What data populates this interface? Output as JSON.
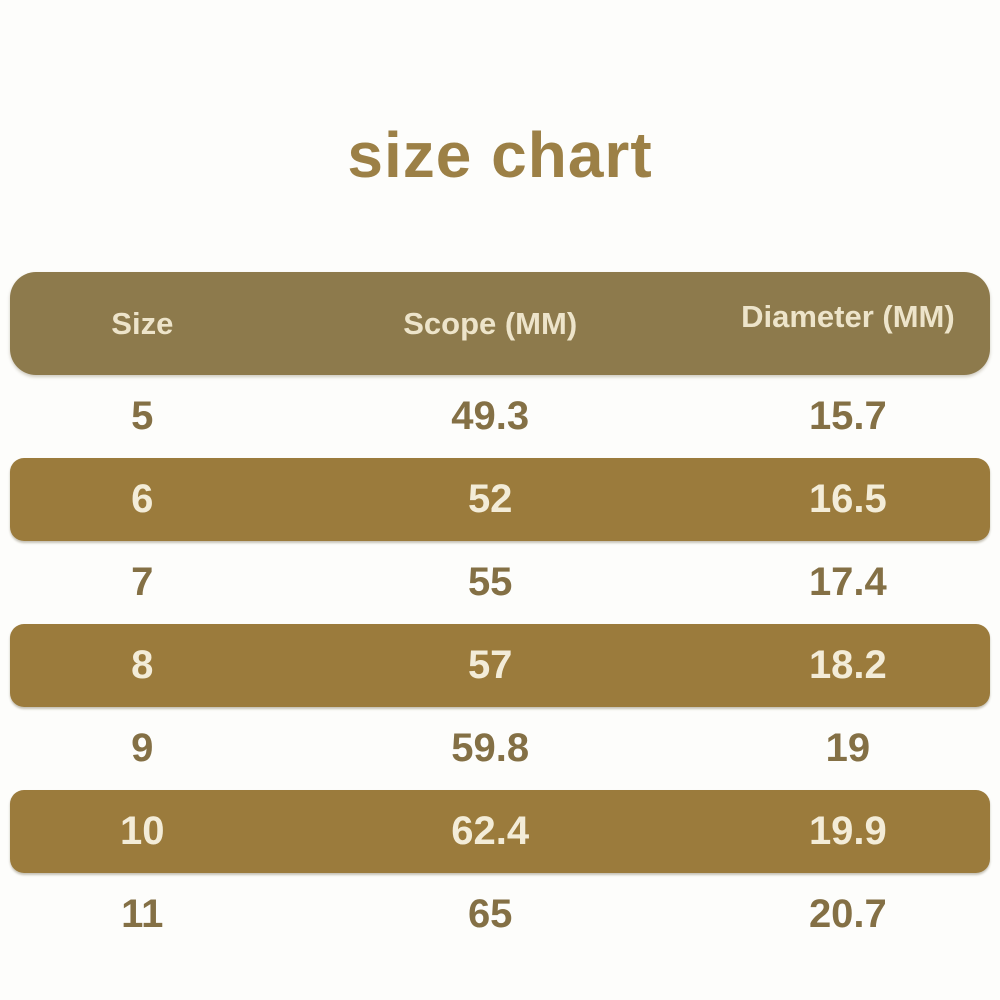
{
  "title": "size chart",
  "table": {
    "columns": [
      "Size",
      "Scope (MM)",
      "Diameter (MM)"
    ],
    "rows": [
      {
        "size": "5",
        "scope": "49.3",
        "diameter": "15.7"
      },
      {
        "size": "6",
        "scope": "52",
        "diameter": "16.5"
      },
      {
        "size": "7",
        "scope": "55",
        "diameter": "17.4"
      },
      {
        "size": "8",
        "scope": "57",
        "diameter": "18.2"
      },
      {
        "size": "9",
        "scope": "59.8",
        "diameter": "19"
      },
      {
        "size": "10",
        "scope": "62.4",
        "diameter": "19.9"
      },
      {
        "size": "11",
        "scope": "65",
        "diameter": "20.7"
      }
    ]
  },
  "colors": {
    "page_bg": "#fdfdfb",
    "title_text": "#9c8046",
    "header_bg": "#8d7a4c",
    "header_text": "#ede4ca",
    "stripe_bg": "#9b7b3c",
    "stripe_text": "#f3ecd8",
    "plain_row_text": "#847045"
  },
  "chart_data": {
    "type": "table",
    "title": "size chart",
    "columns": [
      "Size",
      "Scope (MM)",
      "Diameter (MM)"
    ],
    "rows": [
      [
        5,
        49.3,
        15.7
      ],
      [
        6,
        52,
        16.5
      ],
      [
        7,
        55,
        17.4
      ],
      [
        8,
        57,
        18.2
      ],
      [
        9,
        59.8,
        19
      ],
      [
        10,
        62.4,
        19.9
      ],
      [
        11,
        65,
        20.7
      ]
    ],
    "layout_hints": {
      "striped_rows": [
        1,
        3,
        5
      ],
      "header_style": "gold rounded bar",
      "alignment": "center"
    }
  }
}
